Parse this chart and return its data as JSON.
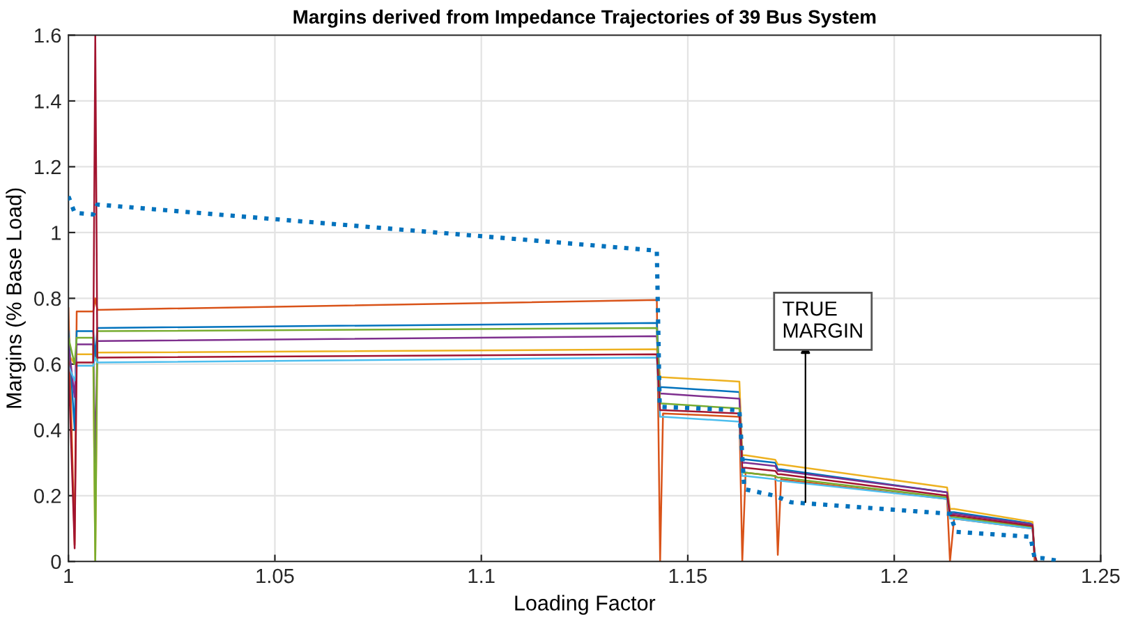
{
  "chart_data": {
    "type": "line",
    "title": "Margins derived from Impedance Trajectories of 39 Bus System",
    "xlabel": "Loading Factor",
    "ylabel": "Margins (% Base Load)",
    "x": [
      1.0,
      1.0015,
      1.002,
      1.006,
      1.0065,
      1.007,
      1.1425,
      1.1433,
      1.144,
      1.1625,
      1.1632,
      1.164,
      1.1712,
      1.1718,
      1.1726,
      1.2128,
      1.2135,
      1.2145,
      1.2335,
      1.234,
      1.2345
    ],
    "series": [
      {
        "color": "#d95319",
        "values": [
          0.77,
          0.05,
          0.76,
          0.76,
          0.8,
          0.765,
          0.795,
          0.0,
          0.45,
          0.44,
          0.0,
          0.27,
          0.26,
          0.02,
          0.25,
          0.19,
          0.0,
          0.13,
          0.1,
          0.0,
          0.0
        ]
      },
      {
        "color": "#0072bd",
        "values": [
          0.7,
          0.4,
          0.7,
          0.7,
          0.62,
          0.71,
          0.725,
          0.53,
          0.53,
          0.515,
          0.31,
          0.31,
          0.3,
          0.28,
          0.28,
          0.21,
          0.15,
          0.15,
          0.115,
          0.02,
          0.0
        ]
      },
      {
        "color": "#edb120",
        "values": [
          0.63,
          0.6,
          0.63,
          0.63,
          0.0,
          0.635,
          0.645,
          0.56,
          0.56,
          0.547,
          0.323,
          0.323,
          0.309,
          0.295,
          0.295,
          0.225,
          0.16,
          0.16,
          0.12,
          0.02,
          0.0
        ]
      },
      {
        "color": "#7e2f8e",
        "values": [
          0.66,
          0.5,
          0.66,
          0.66,
          0.3,
          0.67,
          0.685,
          0.51,
          0.51,
          0.495,
          0.3,
          0.3,
          0.29,
          0.275,
          0.275,
          0.21,
          0.145,
          0.145,
          0.112,
          0.02,
          0.0
        ]
      },
      {
        "color": "#77ac30",
        "values": [
          0.68,
          0.6,
          0.68,
          0.68,
          0.0,
          0.7,
          0.71,
          0.48,
          0.48,
          0.465,
          0.27,
          0.27,
          0.26,
          0.255,
          0.255,
          0.195,
          0.135,
          0.135,
          0.105,
          0.02,
          0.0
        ]
      },
      {
        "color": "#4dbeee",
        "values": [
          0.595,
          0.55,
          0.595,
          0.595,
          0.62,
          0.605,
          0.62,
          0.44,
          0.44,
          0.425,
          0.26,
          0.26,
          0.25,
          0.245,
          0.245,
          0.19,
          0.13,
          0.13,
          0.1,
          0.02,
          0.0
        ]
      },
      {
        "color": "#a2142f",
        "values": [
          0.605,
          0.04,
          0.605,
          0.605,
          1.6,
          0.62,
          0.63,
          0.46,
          0.46,
          0.45,
          0.285,
          0.285,
          0.275,
          0.265,
          0.265,
          0.2,
          0.14,
          0.14,
          0.108,
          0.02,
          0.0
        ]
      },
      {
        "color": "#0072bd",
        "line_style": "dotted",
        "x": [
          1.0,
          1.0015,
          1.006,
          1.007,
          1.1425,
          1.1432,
          1.1625,
          1.1637,
          1.171,
          1.175,
          1.2135,
          1.215,
          1.233,
          1.234,
          1.236,
          1.2405
        ],
        "values": [
          1.11,
          1.06,
          1.055,
          1.085,
          0.945,
          0.47,
          0.46,
          0.22,
          0.2,
          0.18,
          0.145,
          0.09,
          0.075,
          0.01,
          0.01,
          0.0
        ]
      }
    ],
    "xlim": [
      1,
      1.25
    ],
    "xticks": [
      1,
      1.05,
      1.1,
      1.15,
      1.2,
      1.25
    ],
    "ylim": [
      0,
      1.6
    ],
    "yticks": [
      0,
      0.2,
      0.4,
      0.6,
      0.8,
      1,
      1.2,
      1.4,
      1.6
    ],
    "grid": true,
    "line_style": "solid",
    "annotations": [
      {
        "text": "TRUE\nMARGIN",
        "x": 1.1785,
        "y": 0.18
      }
    ]
  }
}
